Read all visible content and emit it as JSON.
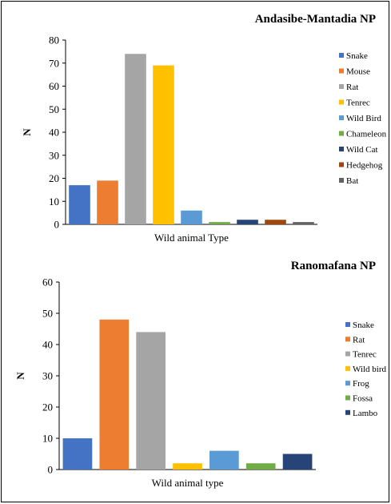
{
  "chart_data": [
    {
      "type": "bar",
      "title": "Andasibe-Mantadia NP",
      "xlabel": "Wild animal Type",
      "ylabel": "N",
      "ylim": [
        0,
        80
      ],
      "yticks": [
        0,
        10,
        20,
        30,
        40,
        50,
        60,
        70,
        80
      ],
      "categories": [
        "Snake",
        "Mouse",
        "Rat",
        "Tenrec",
        "Wild Bird",
        "Chameleon",
        "Wild Cat",
        "Hedgehog",
        "Bat"
      ],
      "values": [
        17,
        19,
        74,
        69,
        6,
        1,
        2,
        2,
        1
      ],
      "colors": [
        "#4472C4",
        "#ED7D31",
        "#A5A5A5",
        "#FFC000",
        "#5B9BD5",
        "#70AD47",
        "#264478",
        "#9E480E",
        "#636363"
      ],
      "legend_position": "right"
    },
    {
      "type": "bar",
      "title": "Ranomafana NP",
      "xlabel": "Wild animal type",
      "ylabel": "N",
      "ylim": [
        0,
        60
      ],
      "yticks": [
        0,
        10,
        20,
        30,
        40,
        50,
        60
      ],
      "categories": [
        "Snake",
        "Rat",
        "Tenrec",
        "Wild bird",
        "Frog",
        "Fossa",
        "Lambo"
      ],
      "values": [
        10,
        48,
        44,
        2,
        6,
        2,
        5
      ],
      "colors": [
        "#4472C4",
        "#ED7D31",
        "#A5A5A5",
        "#FFC000",
        "#5B9BD5",
        "#70AD47",
        "#264478"
      ],
      "legend_position": "right"
    }
  ]
}
